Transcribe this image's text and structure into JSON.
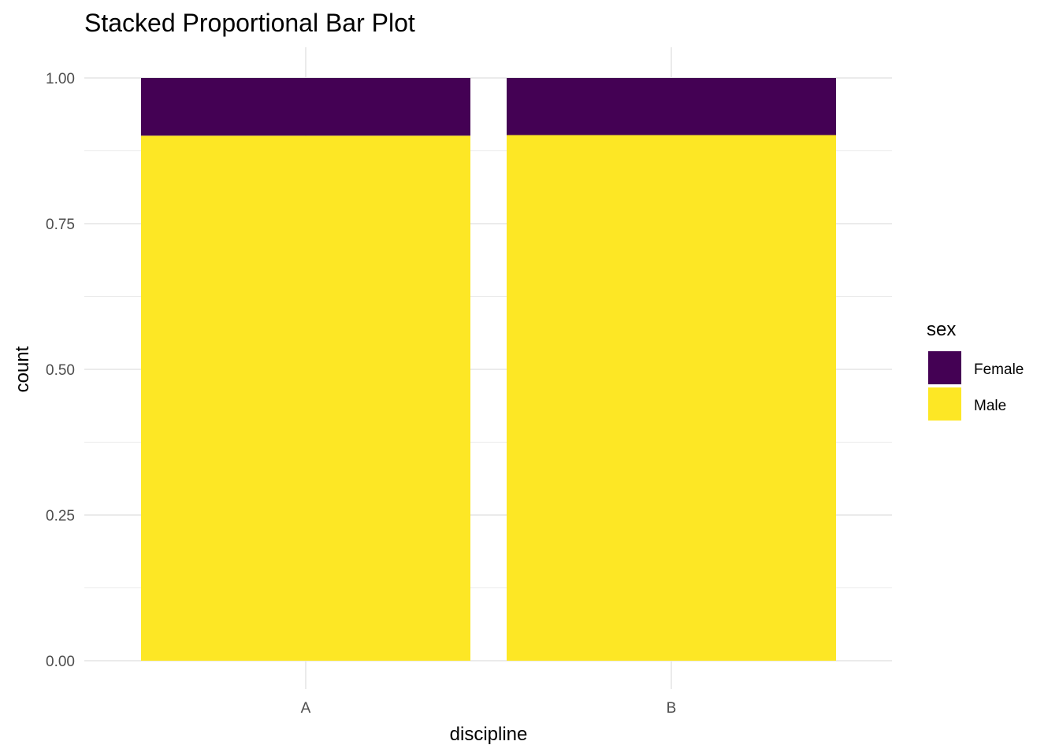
{
  "chart_data": {
    "type": "bar",
    "stacked": true,
    "title": "Stacked Proportional Bar Plot",
    "xlabel": "discipline",
    "ylabel": "count",
    "categories": [
      "A",
      "B"
    ],
    "series": [
      {
        "name": "Female",
        "values": [
          0.099,
          0.098
        ],
        "color": "#440154"
      },
      {
        "name": "Male",
        "values": [
          0.901,
          0.902
        ],
        "color": "#FDE725"
      }
    ],
    "ylim": [
      0,
      1
    ],
    "y_ticks": [
      "0.00",
      "0.25",
      "0.50",
      "0.75",
      "1.00"
    ],
    "grid": true,
    "legend": {
      "title": "sex",
      "position": "right"
    }
  }
}
